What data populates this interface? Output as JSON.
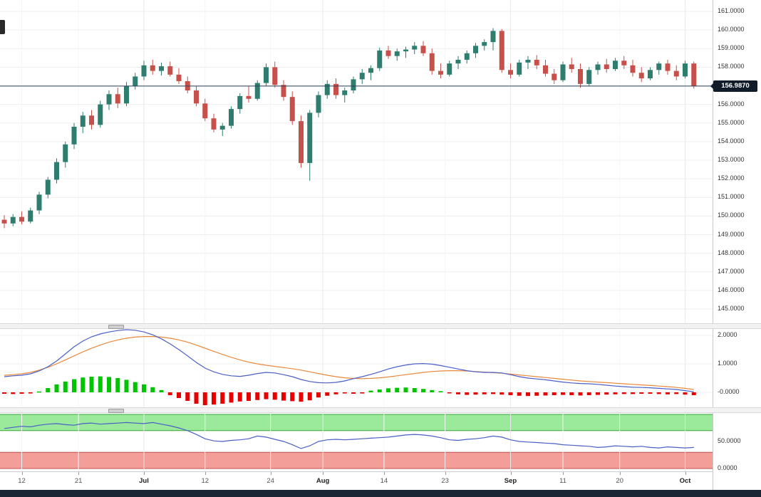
{
  "chart_data": {
    "type": "candlestick",
    "x_tick_labels": [
      {
        "label": "12",
        "index": 2,
        "bold": false
      },
      {
        "label": "21",
        "index": 8.5,
        "bold": false
      },
      {
        "label": "Jul",
        "index": 16,
        "bold": true
      },
      {
        "label": "12",
        "index": 23,
        "bold": false
      },
      {
        "label": "24",
        "index": 30.5,
        "bold": false
      },
      {
        "label": "Aug",
        "index": 36.5,
        "bold": true
      },
      {
        "label": "14",
        "index": 43.5,
        "bold": false
      },
      {
        "label": "23",
        "index": 50.5,
        "bold": false
      },
      {
        "label": "Sep",
        "index": 58,
        "bold": true
      },
      {
        "label": "11",
        "index": 64,
        "bold": false
      },
      {
        "label": "20",
        "index": 70.5,
        "bold": false
      },
      {
        "label": "Oct",
        "index": 78,
        "bold": true
      }
    ],
    "price_panel": {
      "ylim": [
        144.4,
        161.6
      ],
      "y_ticks": [
        {
          "v": 161,
          "label": "161.0000"
        },
        {
          "v": 160,
          "label": "160.0000"
        },
        {
          "v": 159,
          "label": "159.0000"
        },
        {
          "v": 158,
          "label": "158.0000"
        },
        {
          "v": 157,
          "label": "157.0000"
        },
        {
          "v": 156,
          "label": "156.0000"
        },
        {
          "v": 155,
          "label": "155.0000"
        },
        {
          "v": 154,
          "label": "154.0000"
        },
        {
          "v": 153,
          "label": "153.0000"
        },
        {
          "v": 152,
          "label": "152.0000"
        },
        {
          "v": 151,
          "label": "151.0000"
        },
        {
          "v": 150,
          "label": "150.0000"
        },
        {
          "v": 149,
          "label": "149.0000"
        },
        {
          "v": 148,
          "label": "148.0000"
        },
        {
          "v": 147,
          "label": "147.0000"
        },
        {
          "v": 146,
          "label": "146.0000"
        },
        {
          "v": 145,
          "label": "145.0000"
        }
      ],
      "current_price": 156.987,
      "current_price_label": "156.9870",
      "up_color": "#2e7d6f",
      "down_color": "#c7504b",
      "candles": [
        [
          149.8,
          150.05,
          149.35,
          149.6
        ],
        [
          149.6,
          150.1,
          149.45,
          149.95
        ],
        [
          149.95,
          150.25,
          149.55,
          149.7
        ],
        [
          149.7,
          150.45,
          149.6,
          150.3
        ],
        [
          150.3,
          151.3,
          150.1,
          151.15
        ],
        [
          151.15,
          152.1,
          150.95,
          151.95
        ],
        [
          151.95,
          153.1,
          151.75,
          152.9
        ],
        [
          152.9,
          154.0,
          152.6,
          153.85
        ],
        [
          153.85,
          155.0,
          153.6,
          154.8
        ],
        [
          154.8,
          155.6,
          154.45,
          155.4
        ],
        [
          155.4,
          155.7,
          154.65,
          154.9
        ],
        [
          154.9,
          156.2,
          154.75,
          156.0
        ],
        [
          156.0,
          156.75,
          155.7,
          156.55
        ],
        [
          156.55,
          156.9,
          155.8,
          156.05
        ],
        [
          156.05,
          157.2,
          155.9,
          157.0
        ],
        [
          157.0,
          157.7,
          156.8,
          157.5
        ],
        [
          157.5,
          158.35,
          157.3,
          158.1
        ],
        [
          158.1,
          158.4,
          157.6,
          157.8
        ],
        [
          157.8,
          158.25,
          157.55,
          158.05
        ],
        [
          158.05,
          158.3,
          157.5,
          157.6
        ],
        [
          157.6,
          157.95,
          157.1,
          157.25
        ],
        [
          157.25,
          157.5,
          156.6,
          156.75
        ],
        [
          156.75,
          157.0,
          155.9,
          156.05
        ],
        [
          156.05,
          156.3,
          155.1,
          155.25
        ],
        [
          155.25,
          155.5,
          154.5,
          154.65
        ],
        [
          154.65,
          155.0,
          154.3,
          154.85
        ],
        [
          154.85,
          155.9,
          154.7,
          155.75
        ],
        [
          155.75,
          156.6,
          155.5,
          156.45
        ],
        [
          156.45,
          157.0,
          156.1,
          156.3
        ],
        [
          156.3,
          157.3,
          156.2,
          157.15
        ],
        [
          157.15,
          158.2,
          157.0,
          158.0
        ],
        [
          158.0,
          158.3,
          156.9,
          157.05
        ],
        [
          157.05,
          157.3,
          156.2,
          156.4
        ],
        [
          156.4,
          156.7,
          154.9,
          155.1
        ],
        [
          155.1,
          155.4,
          152.6,
          152.85
        ],
        [
          152.85,
          155.7,
          151.9,
          155.55
        ],
        [
          155.55,
          156.7,
          155.3,
          156.5
        ],
        [
          156.5,
          157.3,
          156.3,
          157.1
        ],
        [
          157.1,
          157.4,
          156.3,
          156.5
        ],
        [
          156.5,
          156.9,
          156.1,
          156.75
        ],
        [
          156.75,
          157.5,
          156.6,
          157.35
        ],
        [
          157.35,
          157.9,
          157.1,
          157.7
        ],
        [
          157.7,
          158.1,
          157.3,
          157.95
        ],
        [
          157.95,
          159.05,
          157.8,
          158.9
        ],
        [
          158.9,
          159.15,
          158.45,
          158.6
        ],
        [
          158.6,
          159.0,
          158.35,
          158.85
        ],
        [
          158.85,
          159.1,
          158.5,
          158.95
        ],
        [
          158.95,
          159.35,
          158.7,
          159.15
        ],
        [
          159.15,
          159.4,
          158.6,
          158.75
        ],
        [
          158.75,
          159.0,
          157.6,
          157.8
        ],
        [
          157.8,
          158.2,
          157.4,
          157.6
        ],
        [
          157.6,
          158.35,
          157.5,
          158.2
        ],
        [
          158.2,
          158.6,
          157.9,
          158.4
        ],
        [
          158.4,
          158.9,
          158.2,
          158.75
        ],
        [
          158.75,
          159.3,
          158.5,
          159.15
        ],
        [
          159.15,
          159.5,
          158.9,
          159.35
        ],
        [
          159.35,
          160.1,
          158.9,
          159.95
        ],
        [
          159.95,
          160.05,
          157.7,
          157.85
        ],
        [
          157.85,
          158.2,
          157.4,
          157.6
        ],
        [
          157.6,
          158.4,
          157.5,
          158.25
        ],
        [
          158.25,
          158.6,
          157.9,
          158.4
        ],
        [
          158.4,
          158.65,
          157.9,
          158.1
        ],
        [
          158.1,
          158.4,
          157.5,
          157.65
        ],
        [
          157.65,
          157.9,
          157.1,
          157.3
        ],
        [
          157.3,
          158.3,
          157.2,
          158.15
        ],
        [
          158.15,
          158.5,
          157.7,
          157.9
        ],
        [
          157.9,
          158.2,
          156.9,
          157.1
        ],
        [
          157.1,
          158.0,
          157.0,
          157.85
        ],
        [
          157.85,
          158.3,
          157.6,
          158.15
        ],
        [
          158.15,
          158.45,
          157.7,
          157.9
        ],
        [
          157.9,
          158.5,
          157.8,
          158.35
        ],
        [
          158.35,
          158.6,
          157.9,
          158.1
        ],
        [
          158.1,
          158.4,
          157.5,
          157.7
        ],
        [
          157.7,
          158.0,
          157.2,
          157.4
        ],
        [
          157.4,
          158.0,
          157.3,
          157.85
        ],
        [
          157.85,
          158.3,
          157.6,
          158.2
        ],
        [
          158.2,
          158.4,
          157.6,
          157.8
        ],
        [
          157.8,
          158.1,
          157.3,
          157.5
        ],
        [
          157.5,
          158.35,
          157.4,
          158.2
        ],
        [
          158.2,
          158.3,
          156.85,
          156.99
        ]
      ]
    },
    "macd_panel": {
      "ylim": [
        -0.55,
        2.25
      ],
      "y_ticks": [
        {
          "v": 2,
          "label": "2.0000"
        },
        {
          "v": 1,
          "label": "1.0000"
        },
        {
          "v": 0,
          "label": "-0.0000"
        }
      ],
      "macd_color": "#4a5fc6",
      "signal_color": "#e8883c",
      "hist_up_color": "#00c400",
      "hist_down_color": "#e80000",
      "macd_line": [
        0.55,
        0.58,
        0.6,
        0.65,
        0.75,
        0.9,
        1.1,
        1.35,
        1.6,
        1.8,
        1.95,
        2.05,
        2.12,
        2.17,
        2.2,
        2.18,
        2.12,
        2.02,
        1.88,
        1.7,
        1.5,
        1.28,
        1.05,
        0.85,
        0.72,
        0.63,
        0.58,
        0.56,
        0.6,
        0.66,
        0.7,
        0.68,
        0.62,
        0.55,
        0.45,
        0.38,
        0.34,
        0.33,
        0.35,
        0.4,
        0.48,
        0.55,
        0.63,
        0.72,
        0.82,
        0.9,
        0.96,
        1.0,
        1.01,
        0.99,
        0.94,
        0.88,
        0.82,
        0.76,
        0.72,
        0.7,
        0.7,
        0.68,
        0.62,
        0.55,
        0.5,
        0.47,
        0.44,
        0.4,
        0.36,
        0.33,
        0.31,
        0.3,
        0.28,
        0.25,
        0.22,
        0.2,
        0.18,
        0.17,
        0.16,
        0.14,
        0.12,
        0.1,
        0.06,
        0.02
      ],
      "signal_line": [
        0.6,
        0.62,
        0.65,
        0.7,
        0.78,
        0.88,
        1.0,
        1.14,
        1.28,
        1.42,
        1.55,
        1.66,
        1.76,
        1.84,
        1.9,
        1.94,
        1.96,
        1.96,
        1.94,
        1.9,
        1.84,
        1.76,
        1.66,
        1.55,
        1.44,
        1.33,
        1.23,
        1.14,
        1.06,
        1.0,
        0.95,
        0.91,
        0.87,
        0.83,
        0.78,
        0.72,
        0.66,
        0.6,
        0.55,
        0.51,
        0.49,
        0.48,
        0.49,
        0.51,
        0.54,
        0.58,
        0.62,
        0.66,
        0.7,
        0.73,
        0.75,
        0.76,
        0.76,
        0.75,
        0.73,
        0.71,
        0.69,
        0.67,
        0.64,
        0.61,
        0.58,
        0.55,
        0.52,
        0.49,
        0.46,
        0.43,
        0.4,
        0.38,
        0.36,
        0.34,
        0.32,
        0.3,
        0.28,
        0.26,
        0.24,
        0.22,
        0.2,
        0.17,
        0.14,
        0.1
      ],
      "histogram": [
        -0.05,
        -0.06,
        -0.05,
        -0.04,
        0.03,
        0.15,
        0.28,
        0.38,
        0.46,
        0.52,
        0.55,
        0.56,
        0.54,
        0.5,
        0.44,
        0.36,
        0.28,
        0.18,
        0.08,
        -0.1,
        -0.2,
        -0.3,
        -0.4,
        -0.45,
        -0.43,
        -0.4,
        -0.36,
        -0.32,
        -0.3,
        -0.27,
        -0.24,
        -0.26,
        -0.29,
        -0.31,
        -0.33,
        -0.28,
        -0.18,
        -0.12,
        -0.07,
        -0.04,
        -0.05,
        -0.04,
        0.06,
        0.1,
        0.14,
        0.16,
        0.17,
        0.15,
        0.12,
        0.08,
        0.04,
        -0.03,
        -0.07,
        -0.09,
        -0.08,
        -0.07,
        -0.06,
        -0.08,
        -0.1,
        -0.12,
        -0.13,
        -0.12,
        -0.11,
        -0.1,
        -0.09,
        -0.1,
        -0.11,
        -0.1,
        -0.09,
        -0.08,
        -0.07,
        -0.06,
        -0.06,
        -0.05,
        -0.05,
        -0.06,
        -0.07,
        -0.06,
        -0.08,
        -0.1
      ]
    },
    "stoch_panel": {
      "ylim": [
        0,
        102
      ],
      "y_ticks": [
        {
          "v": 50,
          "label": "50.0000"
        },
        {
          "v": 0,
          "label": "0.0000"
        }
      ],
      "line_color": "#4a5fc6",
      "upper_band": {
        "from": 70,
        "to": 100,
        "fill": "#90e890",
        "edge": "#3aa53a"
      },
      "lower_band": {
        "from": 0,
        "to": 30,
        "fill": "#f2948e",
        "edge": "#c0504d"
      },
      "line": [
        74,
        76,
        78,
        77,
        80,
        82,
        83,
        81,
        80,
        83,
        84,
        82,
        83,
        84,
        85,
        84,
        83,
        85,
        82,
        79,
        75,
        70,
        63,
        55,
        51,
        50,
        52,
        53,
        55,
        60,
        58,
        54,
        50,
        44,
        37,
        42,
        50,
        53,
        54,
        53,
        54,
        55,
        56,
        57,
        58,
        60,
        62,
        63,
        62,
        60,
        57,
        53,
        52,
        54,
        55,
        57,
        60,
        58,
        53,
        50,
        49,
        48,
        47,
        46,
        44,
        43,
        42,
        41,
        39,
        40,
        42,
        41,
        40,
        41,
        39,
        38,
        40,
        39,
        38,
        39
      ]
    }
  }
}
